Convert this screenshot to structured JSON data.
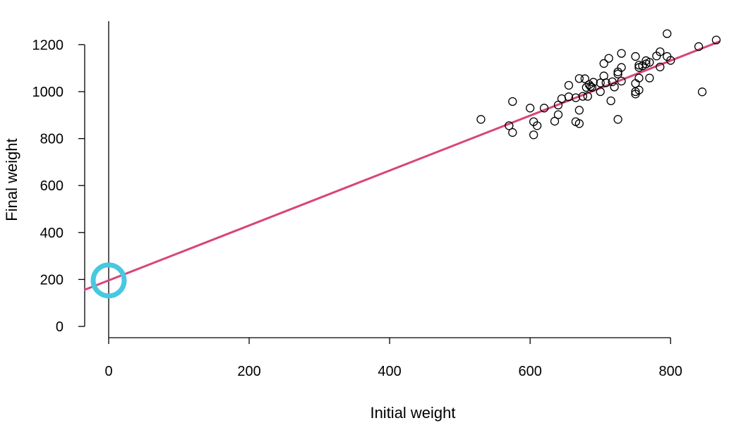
{
  "chart_data": {
    "type": "scatter",
    "xlabel": "Initial weight",
    "ylabel": "Final weight",
    "xlim": [
      -35,
      870
    ],
    "ylim": [
      -40,
      1300
    ],
    "x_ticks": [
      0,
      200,
      400,
      600,
      800
    ],
    "y_ticks": [
      0,
      200,
      400,
      600,
      800,
      1000,
      1200
    ],
    "x_tick_labels": [
      "0",
      "200",
      "400",
      "600",
      "800"
    ],
    "y_tick_labels": [
      "0",
      "200",
      "400",
      "600",
      "800",
      "1000",
      "1200"
    ],
    "grid": false,
    "regression_line": {
      "intercept": 196,
      "slope": 1.17,
      "color": "#d8447b"
    },
    "highlight_marker": {
      "x": 0,
      "y": 196,
      "color": "#48c8e0",
      "note": "intercept"
    },
    "points": [
      {
        "x": 530,
        "y": 882
      },
      {
        "x": 570,
        "y": 855
      },
      {
        "x": 575,
        "y": 958
      },
      {
        "x": 575,
        "y": 826
      },
      {
        "x": 600,
        "y": 930
      },
      {
        "x": 605,
        "y": 872
      },
      {
        "x": 605,
        "y": 816
      },
      {
        "x": 610,
        "y": 855
      },
      {
        "x": 620,
        "y": 930
      },
      {
        "x": 635,
        "y": 874
      },
      {
        "x": 640,
        "y": 902
      },
      {
        "x": 640,
        "y": 943
      },
      {
        "x": 645,
        "y": 970
      },
      {
        "x": 655,
        "y": 978
      },
      {
        "x": 655,
        "y": 1027
      },
      {
        "x": 665,
        "y": 974
      },
      {
        "x": 665,
        "y": 872
      },
      {
        "x": 670,
        "y": 864
      },
      {
        "x": 670,
        "y": 921
      },
      {
        "x": 670,
        "y": 1056
      },
      {
        "x": 675,
        "y": 980
      },
      {
        "x": 678,
        "y": 1055
      },
      {
        "x": 680,
        "y": 1018
      },
      {
        "x": 682,
        "y": 980
      },
      {
        "x": 684,
        "y": 1030
      },
      {
        "x": 686,
        "y": 1022
      },
      {
        "x": 688,
        "y": 1018
      },
      {
        "x": 690,
        "y": 1040
      },
      {
        "x": 700,
        "y": 1037
      },
      {
        "x": 700,
        "y": 1000
      },
      {
        "x": 705,
        "y": 1067
      },
      {
        "x": 705,
        "y": 1120
      },
      {
        "x": 708,
        "y": 1038
      },
      {
        "x": 712,
        "y": 1142
      },
      {
        "x": 715,
        "y": 961
      },
      {
        "x": 717,
        "y": 1042
      },
      {
        "x": 720,
        "y": 1020
      },
      {
        "x": 725,
        "y": 1084
      },
      {
        "x": 725,
        "y": 1075
      },
      {
        "x": 725,
        "y": 882
      },
      {
        "x": 730,
        "y": 1103
      },
      {
        "x": 730,
        "y": 1045
      },
      {
        "x": 730,
        "y": 1163
      },
      {
        "x": 750,
        "y": 1150
      },
      {
        "x": 750,
        "y": 1035
      },
      {
        "x": 750,
        "y": 1000
      },
      {
        "x": 750,
        "y": 990
      },
      {
        "x": 755,
        "y": 1113
      },
      {
        "x": 755,
        "y": 1103
      },
      {
        "x": 755,
        "y": 1058
      },
      {
        "x": 755,
        "y": 1007
      },
      {
        "x": 760,
        "y": 1110
      },
      {
        "x": 765,
        "y": 1132
      },
      {
        "x": 765,
        "y": 1118
      },
      {
        "x": 770,
        "y": 1058
      },
      {
        "x": 770,
        "y": 1125
      },
      {
        "x": 780,
        "y": 1152
      },
      {
        "x": 785,
        "y": 1170
      },
      {
        "x": 785,
        "y": 1105
      },
      {
        "x": 795,
        "y": 1150
      },
      {
        "x": 795,
        "y": 1247
      },
      {
        "x": 800,
        "y": 1133
      },
      {
        "x": 840,
        "y": 1192
      },
      {
        "x": 845,
        "y": 999
      },
      {
        "x": 865,
        "y": 1220
      }
    ]
  }
}
